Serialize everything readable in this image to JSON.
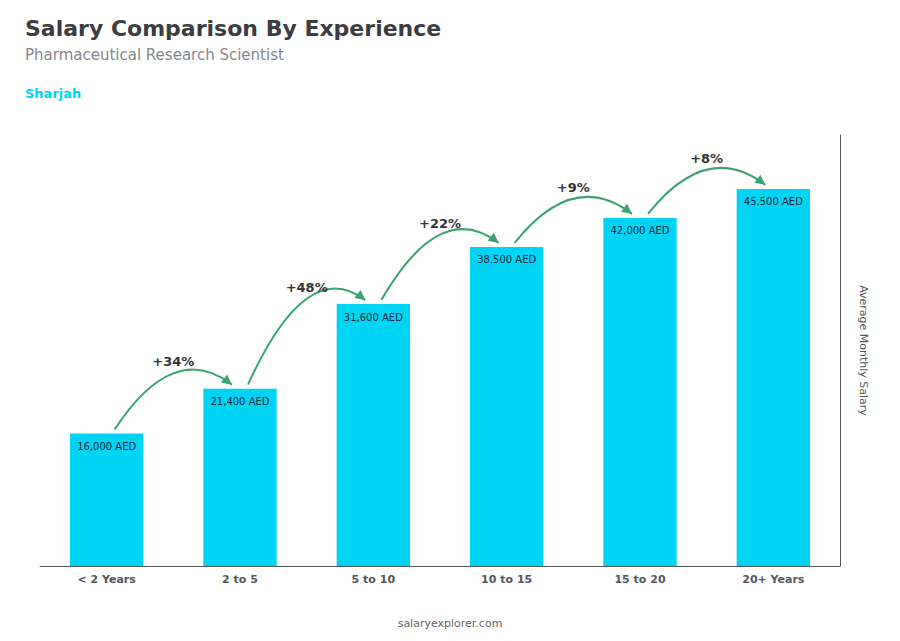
{
  "chart_data": {
    "type": "bar",
    "title": "Salary Comparison By Experience",
    "subtitle": "Pharmaceutical Research Scientist",
    "city": "Sharjah",
    "ylabel": "Average Monthly Salary",
    "watermark": "salaryexplorer.com",
    "categories": [
      "< 2 Years",
      "2 to 5",
      "5 to 10",
      "10 to 15",
      "15 to 20",
      "20+ Years"
    ],
    "values": [
      16000,
      21400,
      31600,
      38500,
      42000,
      45500
    ],
    "value_labels": [
      "16,000 AED",
      "21,400 AED",
      "31,600 AED",
      "38,500 AED",
      "42,000 AED",
      "45,500 AED"
    ],
    "pct_changes": [
      "+34%",
      "+48%",
      "+22%",
      "+9%",
      "+8%"
    ],
    "color": "#00d4f5",
    "ylim": [
      0,
      52000
    ],
    "data_labels": true,
    "tick_labels": "x",
    "grid": false
  }
}
